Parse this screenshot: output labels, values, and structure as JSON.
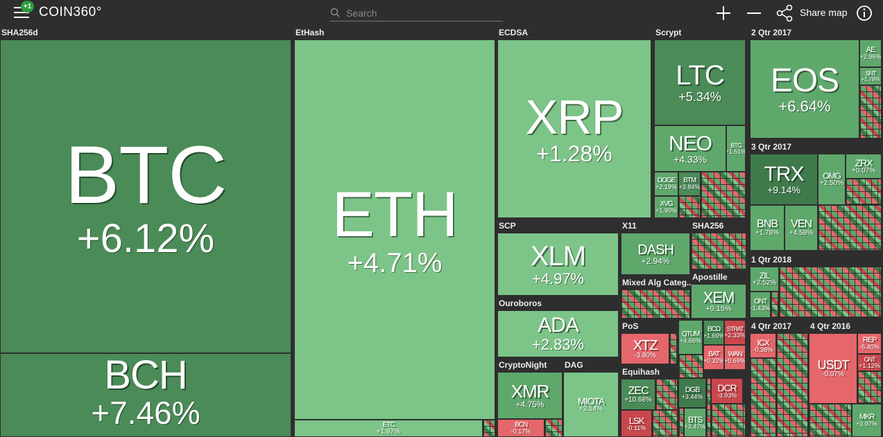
{
  "header": {
    "badge": "+1",
    "logo": "COIN360°",
    "search_placeholder": "Search",
    "share_label": "Share map",
    "icons": [
      "menu-icon",
      "search-icon",
      "zoom-in-icon",
      "zoom-out-icon",
      "share-icon",
      "info-icon"
    ]
  },
  "colors": {
    "up_strong": "#4a8b57",
    "up": "#5fa86c",
    "up_light": "#7cc488",
    "down": "#e5676b",
    "down_strong": "#c9474c",
    "background": "#2e2e2e"
  },
  "groups": [
    {
      "label": "SHA256d"
    },
    {
      "label": "EtHash"
    },
    {
      "label": "ECDSA"
    },
    {
      "label": "Scrypt"
    },
    {
      "label": "2 Qtr 2017"
    },
    {
      "label": "3 Qtr 2017"
    },
    {
      "label": "SCP"
    },
    {
      "label": "X11"
    },
    {
      "label": "SHA256"
    },
    {
      "label": "1 Qtr 2018"
    },
    {
      "label": "Mixed Alg Categ..."
    },
    {
      "label": "Apostille"
    },
    {
      "label": "Ouroboros"
    },
    {
      "label": "PoS"
    },
    {
      "label": "4 Qtr 2017"
    },
    {
      "label": "4 Qtr 2016"
    },
    {
      "label": "CryptoNight"
    },
    {
      "label": "DAG"
    },
    {
      "label": "Equihash"
    }
  ],
  "coins": [
    {
      "sym": "BTC",
      "chg": "+6.12%"
    },
    {
      "sym": "BCH",
      "chg": "+7.46%"
    },
    {
      "sym": "ETH",
      "chg": "+4.71%"
    },
    {
      "sym": "ETC",
      "chg": "+1.97%"
    },
    {
      "sym": "XRP",
      "chg": "+1.28%"
    },
    {
      "sym": "LTC",
      "chg": "+5.34%"
    },
    {
      "sym": "NEO",
      "chg": "+4.33%"
    },
    {
      "sym": "BTG",
      "chg": "+1.51%"
    },
    {
      "sym": "DOGE",
      "chg": "+2.19%"
    },
    {
      "sym": "BTM",
      "chg": "+3.84%"
    },
    {
      "sym": "XVG",
      "chg": "+1.90%"
    },
    {
      "sym": "EOS",
      "chg": "+6.64%"
    },
    {
      "sym": "AE",
      "chg": "+2.96%"
    },
    {
      "sym": "SNT",
      "chg": "+1.78%"
    },
    {
      "sym": "TRX",
      "chg": "+9.14%"
    },
    {
      "sym": "OMG",
      "chg": "+2.50%"
    },
    {
      "sym": "ZRX",
      "chg": "+0.07%"
    },
    {
      "sym": "BNB",
      "chg": "+1.78%"
    },
    {
      "sym": "VEN",
      "chg": "+4.58%"
    },
    {
      "sym": "XLM",
      "chg": "+4.97%"
    },
    {
      "sym": "DASH",
      "chg": "+2.94%"
    },
    {
      "sym": "ZIL",
      "chg": "+2.52%"
    },
    {
      "sym": "ONT",
      "chg": "-1.43%"
    },
    {
      "sym": "XEM",
      "chg": "+0.15%"
    },
    {
      "sym": "ADA",
      "chg": "+2.83%"
    },
    {
      "sym": "XTZ",
      "chg": "-3.80%"
    },
    {
      "sym": "QTUM",
      "chg": "+4.66%"
    },
    {
      "sym": "BCD",
      "chg": "+1.69%"
    },
    {
      "sym": "STRAT",
      "chg": "+2.33%"
    },
    {
      "sym": "BAT",
      "chg": "+0.32%"
    },
    {
      "sym": "WAN",
      "chg": "+0.69%"
    },
    {
      "sym": "ICX",
      "chg": "-0.38%"
    },
    {
      "sym": "USDT",
      "chg": "-0.07%"
    },
    {
      "sym": "REP",
      "chg": "-5.40%"
    },
    {
      "sym": "XMR",
      "chg": "+4.75%"
    },
    {
      "sym": "BCN",
      "chg": "-0.17%"
    },
    {
      "sym": "MIOTA",
      "chg": "+2.14%"
    },
    {
      "sym": "ZEC",
      "chg": "+10.68%"
    },
    {
      "sym": "LSK",
      "chg": "-0.11%"
    },
    {
      "sym": "DGB",
      "chg": "+3.44%"
    },
    {
      "sym": "DCR",
      "chg": "-3.93%"
    },
    {
      "sym": "BTS",
      "chg": "+3.47%"
    },
    {
      "sym": "MKR",
      "chg": "+3.97%"
    },
    {
      "sym": "GNT",
      "chg": "+1.12%"
    }
  ]
}
